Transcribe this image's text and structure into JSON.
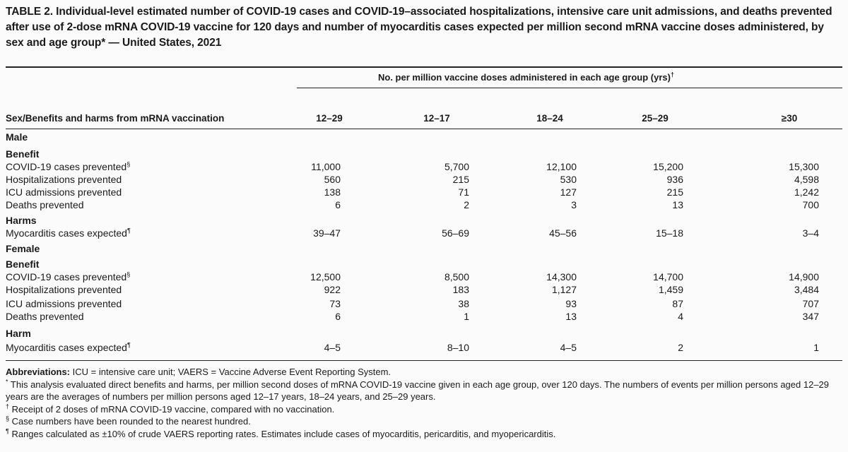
{
  "table": {
    "title": "TABLE 2. Individual-level estimated number of COVID-19 cases and COVID-19–associated hospitalizations, intensive care unit admissions, and deaths prevented after use of 2-dose mRNA COVID-19 vaccine for 120 days and number of myocarditis cases expected per million second mRNA vaccine doses administered, by sex and age group* — United States, 2021",
    "spanner": "No. per million vaccine doses administered in each age group (yrs)",
    "spanner_mark": "†",
    "row_header": "Sex/Benefits and harms from mRNA vaccination",
    "columns": [
      "12–29",
      "12–17",
      "18–24",
      "25–29",
      "≥30"
    ],
    "male": {
      "label": "Male",
      "benefit_label": "Benefit",
      "harm_label": "Harms",
      "rows": [
        {
          "label": "COVID-19 cases prevented",
          "mark": "§",
          "values": [
            "11,000",
            "5,700",
            "12,100",
            "15,200",
            "15,300"
          ]
        },
        {
          "label": "Hospitalizations prevented",
          "mark": "",
          "values": [
            "560",
            "215",
            "530",
            "936",
            "4,598"
          ]
        },
        {
          "label": "ICU admissions prevented",
          "mark": "",
          "values": [
            "138",
            "71",
            "127",
            "215",
            "1,242"
          ]
        },
        {
          "label": "Deaths prevented",
          "mark": "",
          "values": [
            "6",
            "2",
            "3",
            "13",
            "700"
          ]
        }
      ],
      "harm": {
        "label": "Myocarditis cases expected",
        "mark": "¶",
        "values": [
          "39–47",
          "56–69",
          "45–56",
          "15–18",
          "3–4"
        ]
      }
    },
    "female": {
      "label": "Female",
      "benefit_label": "Benefit",
      "harm_label": "Harm",
      "rows": [
        {
          "label": "COVID-19 cases prevented",
          "mark": "§",
          "values": [
            "12,500",
            "8,500",
            "14,300",
            "14,700",
            "14,900"
          ]
        },
        {
          "label": "Hospitalizations prevented",
          "mark": "",
          "values": [
            "922",
            "183",
            "1,127",
            "1,459",
            "3,484"
          ]
        },
        {
          "label": "ICU admissions prevented",
          "mark": "",
          "values": [
            "73",
            "38",
            "93",
            "87",
            "707"
          ]
        },
        {
          "label": "Deaths prevented",
          "mark": "",
          "values": [
            "6",
            "1",
            "13",
            "4",
            "347"
          ]
        }
      ],
      "harm": {
        "label": "Myocarditis cases expected",
        "mark": "¶",
        "values": [
          "4–5",
          "8–10",
          "4–5",
          "2",
          "1"
        ]
      }
    },
    "footnotes": {
      "abbrev_label": "Abbreviations:",
      "abbrev_text": " ICU = intensive care unit; VAERS = Vaccine Adverse Event Reporting System.",
      "star_mark": "*",
      "star_text": " This analysis evaluated direct benefits and harms, per million second doses of mRNA COVID-19 vaccine given in each age group, over 120 days. The numbers of events per million persons aged 12–29 years are the averages of numbers per million persons aged 12–17 years, 18–24 years, and 25–29 years.",
      "dagger_mark": "†",
      "dagger_text": " Receipt of 2 doses of mRNA COVID-19 vaccine, compared with no vaccination.",
      "section_mark": "§",
      "section_text": " Case numbers have been rounded to the nearest hundred.",
      "pilcrow_mark": "¶",
      "pilcrow_text": " Ranges calculated as ±10% of crude VAERS reporting rates. Estimates include cases of myocarditis, pericarditis, and myopericarditis."
    }
  }
}
